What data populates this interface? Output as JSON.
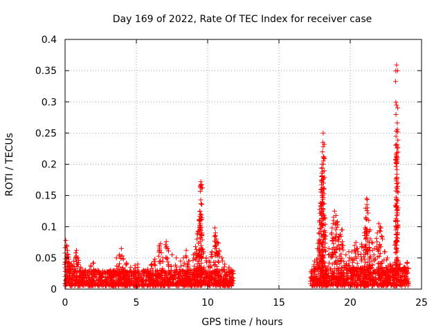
{
  "chart_data": {
    "type": "scatter",
    "title": "Day 169 of 2022, Rate Of TEC Index for receiver case",
    "xlabel": "GPS time / hours",
    "ylabel": "ROTI / TECUs",
    "xlim": [
      0,
      25
    ],
    "ylim": [
      0,
      0.4
    ],
    "x_ticks": [
      0,
      5,
      10,
      15,
      20,
      25
    ],
    "x_tick_labels": [
      "0",
      "5",
      "10",
      "15",
      "20",
      "25"
    ],
    "y_ticks": [
      0,
      0.05,
      0.1,
      0.15,
      0.2,
      0.25,
      0.3,
      0.35,
      0.4
    ],
    "y_tick_labels": [
      "0",
      "0.05",
      "0.1",
      "0.15",
      "0.2",
      "0.25",
      "0.3",
      "0.35",
      "0.4"
    ],
    "grid": true,
    "marker": "+",
    "color": "#ff0000",
    "series": [
      {
        "name": "ROTI",
        "points": [
          [
            0.05,
            0.078
          ],
          [
            0.1,
            0.07
          ],
          [
            0.15,
            0.062
          ],
          [
            0.2,
            0.055
          ],
          [
            0.25,
            0.048
          ],
          [
            0.3,
            0.042
          ],
          [
            0.35,
            0.036
          ],
          [
            0.45,
            0.04
          ],
          [
            0.6,
            0.045
          ],
          [
            0.75,
            0.058
          ],
          [
            0.8,
            0.062
          ],
          [
            0.9,
            0.05
          ],
          [
            1.1,
            0.035
          ],
          [
            1.4,
            0.03
          ],
          [
            1.8,
            0.038
          ],
          [
            2.0,
            0.042
          ],
          [
            2.3,
            0.03
          ],
          [
            2.8,
            0.028
          ],
          [
            3.2,
            0.03
          ],
          [
            3.6,
            0.05
          ],
          [
            3.8,
            0.055
          ],
          [
            3.95,
            0.065
          ],
          [
            4.1,
            0.048
          ],
          [
            4.3,
            0.042
          ],
          [
            4.6,
            0.035
          ],
          [
            4.9,
            0.038
          ],
          [
            5.1,
            0.04
          ],
          [
            5.5,
            0.03
          ],
          [
            5.8,
            0.032
          ],
          [
            6.1,
            0.04
          ],
          [
            6.3,
            0.048
          ],
          [
            6.6,
            0.07
          ],
          [
            6.7,
            0.073
          ],
          [
            6.85,
            0.05
          ],
          [
            7.1,
            0.076
          ],
          [
            7.2,
            0.065
          ],
          [
            7.5,
            0.055
          ],
          [
            7.8,
            0.05
          ],
          [
            8.1,
            0.045
          ],
          [
            8.3,
            0.05
          ],
          [
            8.5,
            0.062
          ],
          [
            8.7,
            0.045
          ],
          [
            9.0,
            0.055
          ],
          [
            9.15,
            0.068
          ],
          [
            9.25,
            0.08
          ],
          [
            9.35,
            0.093
          ],
          [
            9.4,
            0.11
          ],
          [
            9.45,
            0.125
          ],
          [
            9.5,
            0.12
          ],
          [
            9.48,
            0.165
          ],
          [
            9.52,
            0.172
          ],
          [
            9.55,
            0.168
          ],
          [
            9.6,
            0.09
          ],
          [
            9.7,
            0.06
          ],
          [
            9.9,
            0.05
          ],
          [
            10.1,
            0.045
          ],
          [
            10.3,
            0.06
          ],
          [
            10.5,
            0.098
          ],
          [
            10.55,
            0.09
          ],
          [
            10.6,
            0.08
          ],
          [
            10.7,
            0.075
          ],
          [
            10.8,
            0.062
          ],
          [
            11.0,
            0.05
          ],
          [
            11.2,
            0.04
          ],
          [
            11.5,
            0.035
          ],
          [
            11.7,
            0.03
          ],
          [
            17.3,
            0.028
          ],
          [
            17.5,
            0.045
          ],
          [
            17.7,
            0.065
          ],
          [
            17.8,
            0.09
          ],
          [
            17.85,
            0.11
          ],
          [
            17.9,
            0.138
          ],
          [
            17.95,
            0.16
          ],
          [
            18.0,
            0.18
          ],
          [
            18.02,
            0.2
          ],
          [
            18.05,
            0.22
          ],
          [
            18.08,
            0.235
          ],
          [
            18.1,
            0.25
          ],
          [
            18.15,
            0.212
          ],
          [
            18.2,
            0.115
          ],
          [
            18.3,
            0.085
          ],
          [
            18.5,
            0.065
          ],
          [
            18.7,
            0.09
          ],
          [
            18.8,
            0.105
          ],
          [
            18.9,
            0.125
          ],
          [
            19.0,
            0.118
          ],
          [
            19.1,
            0.108
          ],
          [
            19.2,
            0.085
          ],
          [
            19.3,
            0.088
          ],
          [
            19.4,
            0.095
          ],
          [
            19.5,
            0.07
          ],
          [
            19.7,
            0.055
          ],
          [
            19.9,
            0.06
          ],
          [
            20.1,
            0.06
          ],
          [
            20.3,
            0.07
          ],
          [
            20.4,
            0.075
          ],
          [
            20.5,
            0.065
          ],
          [
            20.8,
            0.072
          ],
          [
            21.0,
            0.09
          ],
          [
            21.1,
            0.115
          ],
          [
            21.15,
            0.145
          ],
          [
            21.2,
            0.13
          ],
          [
            21.3,
            0.11
          ],
          [
            21.4,
            0.095
          ],
          [
            21.5,
            0.075
          ],
          [
            21.7,
            0.065
          ],
          [
            21.9,
            0.09
          ],
          [
            22.0,
            0.105
          ],
          [
            22.1,
            0.1
          ],
          [
            22.2,
            0.085
          ],
          [
            22.4,
            0.06
          ],
          [
            22.6,
            0.05
          ],
          [
            22.8,
            0.04
          ],
          [
            23.0,
            0.038
          ],
          [
            23.2,
            0.095
          ],
          [
            23.22,
            0.113
          ],
          [
            23.24,
            0.212
          ],
          [
            23.26,
            0.232
          ],
          [
            23.28,
            0.226
          ],
          [
            23.3,
            0.256
          ],
          [
            23.25,
            0.359
          ],
          [
            23.5,
            0.04
          ],
          [
            23.8,
            0.035
          ],
          [
            24.0,
            0.043
          ]
        ],
        "dense_segments": [
          {
            "x_range": [
              0,
              11.8
            ],
            "y_range": [
              0.005,
              0.03
            ]
          },
          {
            "x_range": [
              17.2,
              24.1
            ],
            "y_range": [
              0.005,
              0.035
            ]
          }
        ]
      }
    ]
  }
}
